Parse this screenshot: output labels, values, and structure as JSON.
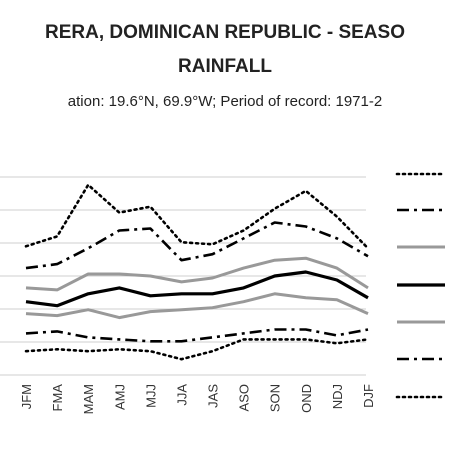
{
  "chart_data": {
    "type": "line",
    "title_line1": "RERA, DOMINICAN REPUBLIC - SEASO",
    "title_line2": "RAINFALL",
    "subtitle": "ation: 19.6°N, 69.9°W; Period of record: 1971-2",
    "categories": [
      "JFM",
      "FMA",
      "MAM",
      "AMJ",
      "MJJ",
      "JJA",
      "JAS",
      "ASO",
      "SON",
      "OND",
      "NDJ",
      "DJF"
    ],
    "ylim": [
      0,
      100
    ],
    "series": [
      {
        "style": "dotted",
        "color": "#000000",
        "values": [
          65,
          70,
          96,
          82,
          85,
          67,
          66,
          73,
          84,
          93,
          80,
          64
        ]
      },
      {
        "style": "dashdot",
        "color": "#000000",
        "values": [
          54,
          56,
          64,
          73,
          74,
          58,
          61,
          69,
          77,
          75,
          69,
          60
        ]
      },
      {
        "style": "solid",
        "color": "#999999",
        "values": [
          44,
          43,
          51,
          51,
          50,
          47,
          49,
          54,
          58,
          59,
          54,
          44
        ]
      },
      {
        "style": "solid",
        "color": "#000000",
        "values": [
          37,
          35,
          41,
          44,
          40,
          41,
          41,
          44,
          50,
          52,
          48,
          39
        ]
      },
      {
        "style": "solid",
        "color": "#999999",
        "values": [
          31,
          30,
          33,
          29,
          32,
          33,
          34,
          37,
          41,
          39,
          38,
          31
        ]
      },
      {
        "style": "dashdot",
        "color": "#000000",
        "values": [
          21,
          22,
          19,
          18,
          17,
          17,
          19,
          21,
          23,
          23,
          20,
          23
        ]
      },
      {
        "style": "dotted",
        "color": "#000000",
        "values": [
          12,
          13,
          12,
          13,
          12,
          8,
          12,
          18,
          18,
          18,
          16,
          18
        ]
      }
    ],
    "legend_placement": "right",
    "grid": true
  }
}
